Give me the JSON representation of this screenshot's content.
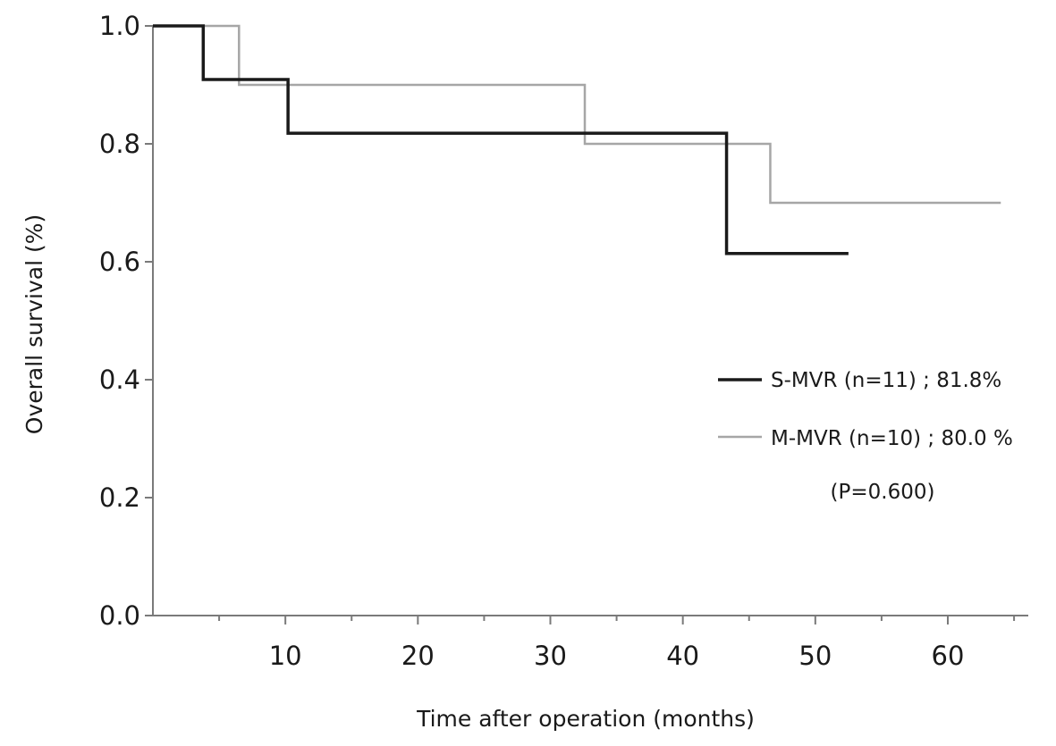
{
  "chart_data": {
    "type": "line",
    "step": true,
    "title": "",
    "xlabel": "Time after operation (months)",
    "ylabel": "Overall survival (%)",
    "xlim": [
      0,
      66
    ],
    "ylim": [
      0.0,
      1.0
    ],
    "x_major_ticks": [
      10,
      20,
      30,
      40,
      50,
      60
    ],
    "x_minor_ticks": [
      5,
      15,
      25,
      35,
      45,
      55,
      65
    ],
    "y_ticks": [
      {
        "value": 0.0,
        "label": "0.0"
      },
      {
        "value": 0.2,
        "label": "0.2"
      },
      {
        "value": 0.4,
        "label": "0.4"
      },
      {
        "value": 0.6,
        "label": "0.6"
      },
      {
        "value": 0.8,
        "label": "0.8"
      },
      {
        "value": 1.0,
        "label": "1.0"
      }
    ],
    "grid": false,
    "legend_position": "right",
    "series": [
      {
        "name": "S-MVR (n=11) ; 81.8%",
        "color": "#1a1a1a",
        "points": [
          [
            0,
            1.0
          ],
          [
            3.8,
            0.909
          ],
          [
            10.2,
            0.818
          ],
          [
            43.3,
            0.614
          ],
          [
            52.5,
            0.614
          ]
        ]
      },
      {
        "name": "M-MVR (n=10) ; 80.0 %",
        "color": "#a6a6a6",
        "points": [
          [
            0,
            1.0
          ],
          [
            6.5,
            0.9
          ],
          [
            32.6,
            0.8
          ],
          [
            46.6,
            0.7
          ],
          [
            64,
            0.7
          ]
        ]
      }
    ],
    "annotation": "(P=0.600)"
  }
}
